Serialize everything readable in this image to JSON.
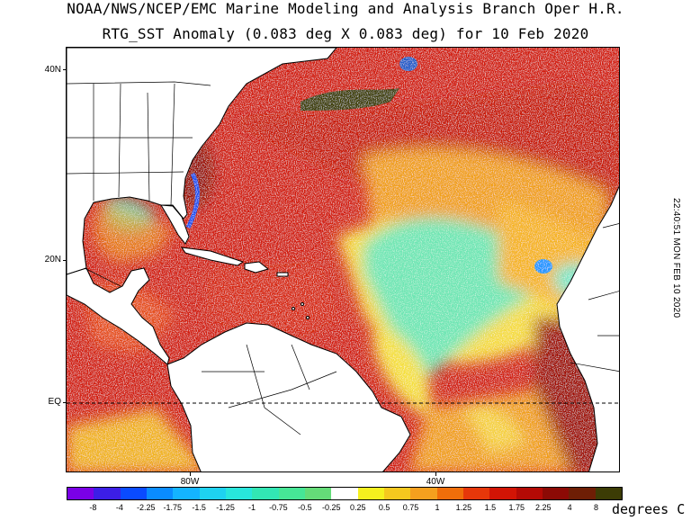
{
  "title": {
    "line1": "NOAA/NWS/NCEP/EMC Marine Modeling and Analysis Branch Oper H.R.",
    "line2": "RTG_SST Anomaly (0.083 deg X 0.083 deg) for 10 Feb 2020"
  },
  "map": {
    "lat_labels": [
      "40N",
      "20N",
      "EQ"
    ],
    "lon_labels": [
      "80W",
      "40W"
    ],
    "colors": {
      "land": "#ffffff",
      "coast": "#000000",
      "equator_line": "#000000"
    }
  },
  "timestamp": "22:40:51  MON FEB 10 2020",
  "colorbar": {
    "labels": [
      "-8",
      "-4",
      "-2.25",
      "-1.75",
      "-1.5",
      "-1.25",
      "-1",
      "-0.75",
      "-0.5",
      "-0.25",
      "0.25",
      "0.5",
      "0.75",
      "1",
      "1.25",
      "1.5",
      "1.75",
      "2.25",
      "4",
      "8"
    ],
    "colors": [
      "#7a00e6",
      "#3c1ee6",
      "#0a4bff",
      "#0a8cff",
      "#14b4ff",
      "#1ed2f0",
      "#28e6dc",
      "#32e6b4",
      "#46e696",
      "#64dc78",
      "#ffffff",
      "#f5f01e",
      "#f5c81e",
      "#f5a01e",
      "#f06e0a",
      "#e6370a",
      "#d21405",
      "#b40a05",
      "#8c0a05",
      "#6e1e05",
      "#3c3c05"
    ],
    "units": "degrees C"
  }
}
